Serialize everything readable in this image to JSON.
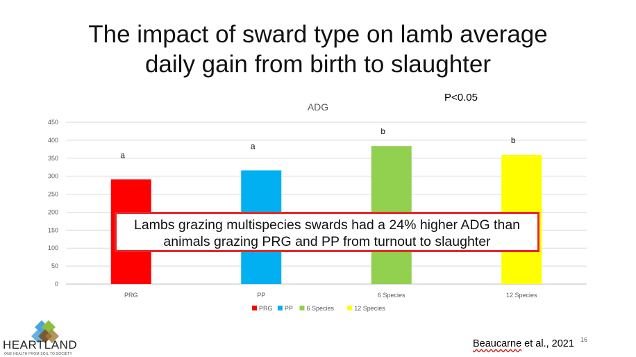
{
  "slide": {
    "title_line1": "The impact of sward type on lamb average",
    "title_line2": "daily gain from birth to slaughter",
    "p_value": "P<0.05",
    "callout_line1": "Lambs grazing multispecies swards had a 24% higher ADG than",
    "callout_line2": "animals grazing PRG and PP from turnout to slaughter",
    "citation_author": "Beaucarne",
    "citation_rest": " et al., 2021",
    "slide_number": "16",
    "logo_name": "HEARTLAND",
    "logo_tagline": "ONE HEALTH FROM SOIL TO SOCIETY"
  },
  "chart_data": {
    "type": "bar",
    "title": "ADG",
    "categories": [
      "PRG",
      "PP",
      "6 Species",
      "12 Species"
    ],
    "values": [
      291,
      316,
      384,
      359
    ],
    "significance_letters": [
      "a",
      "a",
      "b",
      "b"
    ],
    "colors": [
      "#ff0000",
      "#00b0f0",
      "#92d050",
      "#ffff00"
    ],
    "ylim": [
      0,
      450
    ],
    "yticks": [
      0,
      50,
      100,
      150,
      200,
      250,
      300,
      350,
      400,
      450
    ],
    "xlabel": "",
    "ylabel": "",
    "grid": true,
    "legend_position": "bottom"
  }
}
